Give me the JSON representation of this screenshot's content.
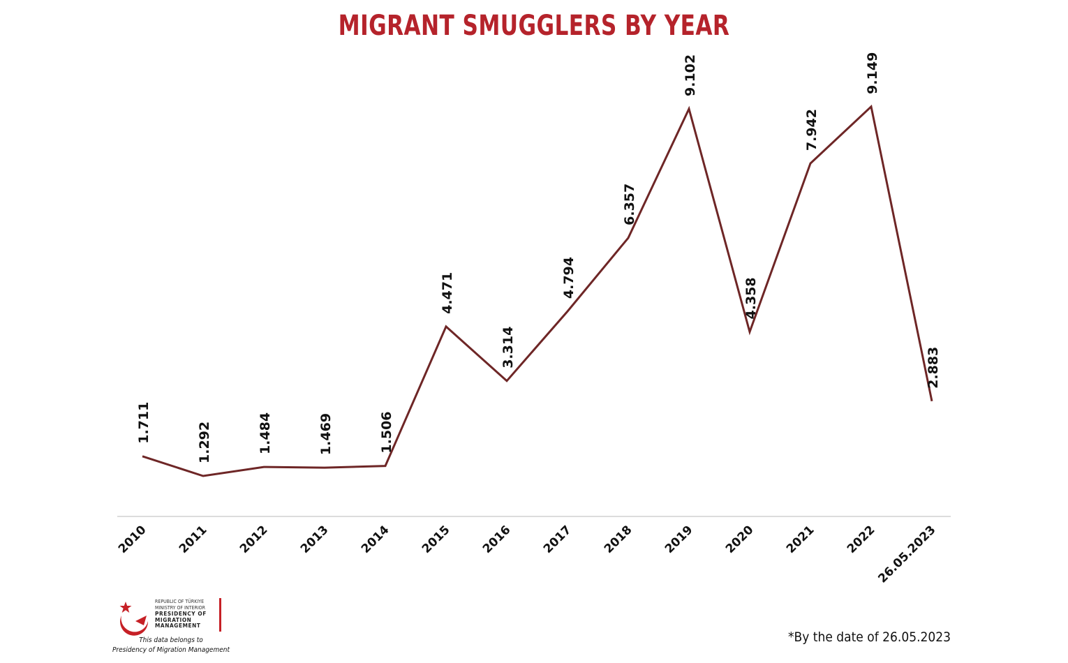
{
  "chart_data": {
    "type": "line",
    "title": "MIGRANT SMUGGLERS BY YEAR",
    "categories": [
      "2010",
      "2011",
      "2012",
      "2013",
      "2014",
      "2015",
      "2016",
      "2017",
      "2018",
      "2019",
      "2020",
      "2021",
      "2022",
      "26.05.2023"
    ],
    "series": [
      {
        "values": [
          1711,
          1292,
          1484,
          1469,
          1506,
          4471,
          3314,
          4794,
          6357,
          9102,
          4358,
          7942,
          9149,
          2883
        ],
        "labels": [
          "1.711",
          "1.292",
          "1.484",
          "1.469",
          "1.506",
          "4.471",
          "3.314",
          "4.794",
          "6.357",
          "9.102",
          "4.358",
          "7.942",
          "9.149",
          "2.883"
        ]
      }
    ],
    "xlabel": "",
    "ylabel": "",
    "grid": false,
    "y_axis_visible": false,
    "colors": {
      "line": "#6e2626",
      "title": "#b5232b",
      "axis": "#d0d0d0"
    }
  },
  "footnote": "*By the date of 26.05.2023",
  "logo": {
    "line1": "REPUBLIC OF TÜRKIYE",
    "line2": "MINISTRY OF INTERIOR",
    "line3": "PRESIDENCY OF",
    "line4": "MIGRATION MANAGEMENT",
    "caption_line1": "This data belongs to",
    "caption_line2": "Presidency of Migration Management",
    "icon": "crescent-star-icon"
  }
}
